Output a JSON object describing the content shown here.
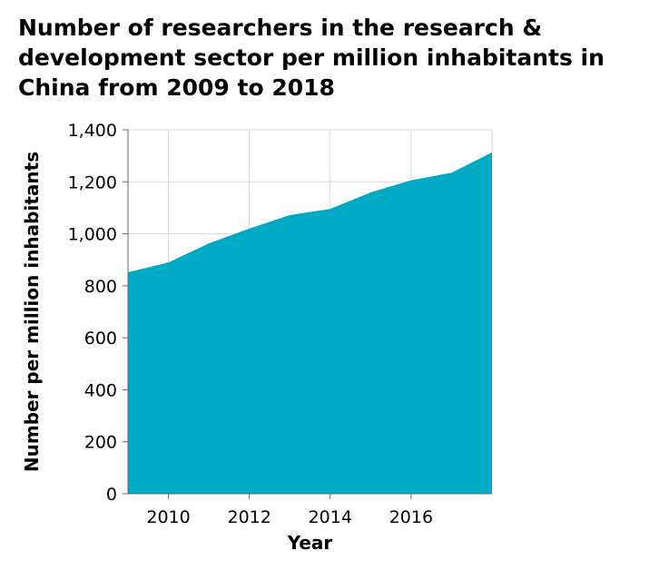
{
  "chart_data": {
    "type": "area",
    "title": "Number of researchers in the research & development sector per million inhabitants in China from 2009 to 2018",
    "xlabel": "Year",
    "ylabel": "Number per million inhabitants",
    "x": [
      2009,
      2010,
      2011,
      2012,
      2013,
      2014,
      2015,
      2016,
      2017,
      2018
    ],
    "series": [
      {
        "values": [
          852,
          890,
          963,
          1020,
          1072,
          1096,
          1159,
          1206,
          1235,
          1313
        ]
      }
    ],
    "xlim": [
      2009,
      2018
    ],
    "ylim": [
      0,
      1400
    ],
    "x_ticks": [
      2010,
      2012,
      2014,
      2016
    ],
    "x_tick_labels": [
      "2010",
      "2012",
      "2014",
      "2016"
    ],
    "y_ticks": [
      0,
      200,
      400,
      600,
      800,
      1000,
      1200,
      1400
    ],
    "y_tick_labels": [
      "0",
      "200",
      "400",
      "600",
      "800",
      "1,000",
      "1,200",
      "1,400"
    ],
    "grid": true,
    "legend": "none",
    "colors": {
      "area": "#00aac4",
      "grid": "#d9d9d9",
      "axis": "#666666"
    }
  }
}
